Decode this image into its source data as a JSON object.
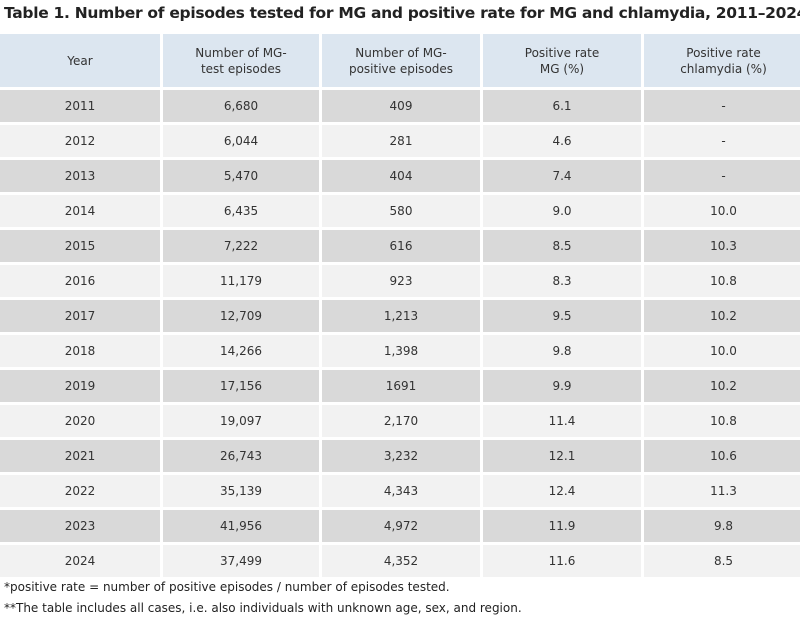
{
  "title": "Table 1. Number of episodes tested for MG and positive rate for MG and chlamydia, 2011–2024",
  "headers": [
    "Year",
    "Number of MG-test episodes",
    "Number of MG-positive episodes",
    "Positive rate MG (%)",
    "Positive rate chlamydia (%)"
  ],
  "rows": [
    [
      "2011",
      "6,680",
      "409",
      "6.1",
      "-"
    ],
    [
      "2012",
      "6,044",
      "281",
      "4.6",
      "-"
    ],
    [
      "2013",
      "5,470",
      "404",
      "7.4",
      "-"
    ],
    [
      "2014",
      "6,435",
      "580",
      "9.0",
      "10.0"
    ],
    [
      "2015",
      "7,222",
      "616",
      "8.5",
      "10.3"
    ],
    [
      "2016",
      "11,179",
      "923",
      "8.3",
      "10.8"
    ],
    [
      "2017",
      "12,709",
      "1,213",
      "9.5",
      "10.2"
    ],
    [
      "2018",
      "14,266",
      "1,398",
      "9.8",
      "10.0"
    ],
    [
      "2019",
      "17,156",
      "1691",
      "9.9",
      "10.2"
    ],
    [
      "2020",
      "19,097",
      "2,170",
      "11.4",
      "10.8"
    ],
    [
      "2021",
      "26,743",
      "3,232",
      "12.1",
      "10.6"
    ],
    [
      "2022",
      "35,139",
      "4,343",
      "12.4",
      "11.3"
    ],
    [
      "2023",
      "41,956",
      "4,972",
      "11.9",
      "9.8"
    ],
    [
      "2024",
      "37,499",
      "4,352",
      "11.6",
      "8.5"
    ]
  ],
  "footnotes": [
    "*positive rate = number of positive episodes / number of episodes tested.",
    "**The table includes all cases, i.e. also individuals with unknown age, sex, and region."
  ],
  "colors": {
    "header_bg": "#dce6f0",
    "row_dark": "#d9d9d9",
    "row_light": "#f2f2f2"
  }
}
